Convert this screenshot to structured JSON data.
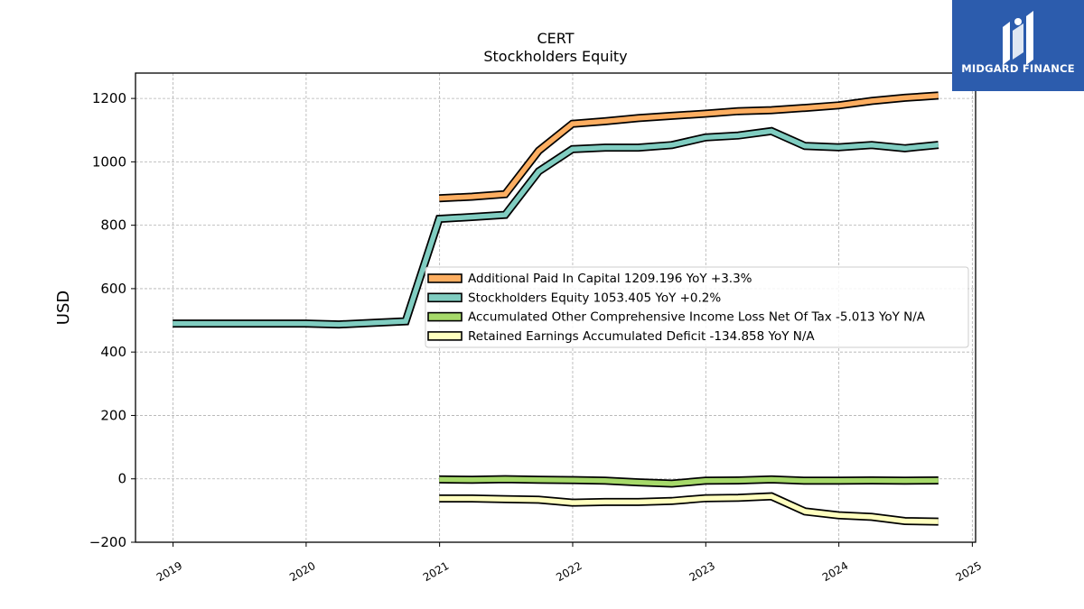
{
  "chart_data": {
    "type": "line",
    "title": "CERT",
    "subtitle": "Stockholders  Equity",
    "ylabel": "USD",
    "xlabel": "",
    "xlim": [
      "2018-09-20",
      "2025-01-10"
    ],
    "ylim": [
      -200,
      1280
    ],
    "y_ticks": [
      -200,
      0,
      200,
      400,
      600,
      800,
      1000,
      1200
    ],
    "x_ticks": [
      "2019",
      "2020",
      "2021",
      "2022",
      "2023",
      "2024",
      "2025"
    ],
    "grid": true,
    "legend_position": "center-right",
    "series": [
      {
        "name": "Additional Paid In Capital",
        "legend_label": "Additional Paid In Capital  1209.196 YoY +3.3%",
        "color": "#fdae61",
        "points": [
          [
            "2020-12-31",
            885
          ],
          [
            "2021-03-31",
            890
          ],
          [
            "2021-06-30",
            898
          ],
          [
            "2021-09-30",
            1035
          ],
          [
            "2021-12-31",
            1120
          ],
          [
            "2022-03-31",
            1128
          ],
          [
            "2022-06-30",
            1138
          ],
          [
            "2022-09-30",
            1145
          ],
          [
            "2022-12-31",
            1152
          ],
          [
            "2023-03-31",
            1160
          ],
          [
            "2023-06-30",
            1163
          ],
          [
            "2023-09-30",
            1170
          ],
          [
            "2023-12-31",
            1178
          ],
          [
            "2024-03-31",
            1192
          ],
          [
            "2024-06-30",
            1202
          ],
          [
            "2024-09-30",
            1209.196
          ]
        ]
      },
      {
        "name": "Stockholders Equity",
        "legend_label": "Stockholders Equity  1053.405 YoY +0.2%",
        "color": "#80cdc1",
        "points": [
          [
            "2018-12-31",
            490
          ],
          [
            "2019-03-31",
            490
          ],
          [
            "2019-06-30",
            490
          ],
          [
            "2019-09-30",
            490
          ],
          [
            "2019-12-31",
            490
          ],
          [
            "2020-03-31",
            487
          ],
          [
            "2020-06-30",
            492
          ],
          [
            "2020-09-30",
            497
          ],
          [
            "2020-12-31",
            820
          ],
          [
            "2021-03-31",
            826
          ],
          [
            "2021-06-30",
            833
          ],
          [
            "2021-09-30",
            970
          ],
          [
            "2021-12-31",
            1040
          ],
          [
            "2022-03-31",
            1045
          ],
          [
            "2022-06-30",
            1045
          ],
          [
            "2022-09-30",
            1053
          ],
          [
            "2022-12-31",
            1077
          ],
          [
            "2023-03-31",
            1083
          ],
          [
            "2023-06-30",
            1097
          ],
          [
            "2023-09-30",
            1050
          ],
          [
            "2023-12-31",
            1046
          ],
          [
            "2024-03-31",
            1053
          ],
          [
            "2024-06-30",
            1043
          ],
          [
            "2024-09-30",
            1053.405
          ]
        ]
      },
      {
        "name": "Accumulated Other Comprehensive Income Loss Net Of Tax",
        "legend_label": "Accumulated Other Comprehensive Income Loss Net Of Tax  -5.013 YoY N/A",
        "color": "#a6d96a",
        "points": [
          [
            "2020-12-31",
            -2
          ],
          [
            "2021-03-31",
            -3
          ],
          [
            "2021-06-30",
            -1
          ],
          [
            "2021-09-30",
            -3
          ],
          [
            "2021-12-31",
            -4
          ],
          [
            "2022-03-31",
            -6
          ],
          [
            "2022-06-30",
            -11
          ],
          [
            "2022-09-30",
            -15
          ],
          [
            "2022-12-31",
            -6
          ],
          [
            "2023-03-31",
            -5
          ],
          [
            "2023-06-30",
            -2
          ],
          [
            "2023-09-30",
            -6
          ],
          [
            "2023-12-31",
            -6
          ],
          [
            "2024-03-31",
            -5
          ],
          [
            "2024-06-30",
            -6
          ],
          [
            "2024-09-30",
            -5.013
          ]
        ]
      },
      {
        "name": "Retained Earnings Accumulated Deficit",
        "legend_label": "Retained Earnings Accumulated Deficit  -134.858 YoY N/A",
        "color": "#ffffbf",
        "points": [
          [
            "2020-12-31",
            -62
          ],
          [
            "2021-03-31",
            -62
          ],
          [
            "2021-06-30",
            -64
          ],
          [
            "2021-09-30",
            -66
          ],
          [
            "2021-12-31",
            -75
          ],
          [
            "2022-03-31",
            -73
          ],
          [
            "2022-06-30",
            -73
          ],
          [
            "2022-09-30",
            -70
          ],
          [
            "2022-12-31",
            -61
          ],
          [
            "2023-03-31",
            -60
          ],
          [
            "2023-06-30",
            -55
          ],
          [
            "2023-09-30",
            -103
          ],
          [
            "2023-12-31",
            -115
          ],
          [
            "2024-03-31",
            -120
          ],
          [
            "2024-06-30",
            -133
          ],
          [
            "2024-09-30",
            -134.858
          ]
        ]
      }
    ]
  },
  "logo": {
    "text": "MIDGARD FINANCE",
    "color": "#2c5cad"
  }
}
